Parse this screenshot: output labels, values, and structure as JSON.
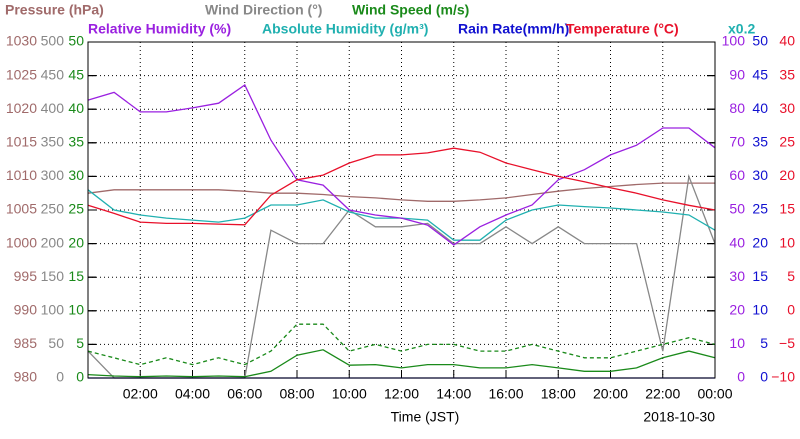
{
  "chart_data": {
    "type": "line",
    "x_label": "Time (JST)",
    "date": "2018-10-30",
    "annotation": "x0.2",
    "grid": true,
    "xlim": [
      0,
      24
    ],
    "xticks": [
      {
        "value": 2,
        "label": "02:00"
      },
      {
        "value": 4,
        "label": "04:00"
      },
      {
        "value": 6,
        "label": "06:00"
      },
      {
        "value": 8,
        "label": "08:00"
      },
      {
        "value": 10,
        "label": "10:00"
      },
      {
        "value": 12,
        "label": "12:00"
      },
      {
        "value": 14,
        "label": "14:00"
      },
      {
        "value": 16,
        "label": "16:00"
      },
      {
        "value": 18,
        "label": "18:00"
      },
      {
        "value": 20,
        "label": "20:00"
      },
      {
        "value": 22,
        "label": "22:00"
      },
      {
        "value": 24,
        "label": "00:00"
      }
    ],
    "x": [
      0,
      1,
      2,
      3,
      4,
      5,
      6,
      7,
      8,
      9,
      10,
      11,
      12,
      13,
      14,
      15,
      16,
      17,
      18,
      19,
      20,
      21,
      22,
      23,
      24
    ],
    "axes": [
      {
        "title": "Pressure (hPa)",
        "color": "#a06a6a",
        "ylim": [
          980,
          1030
        ],
        "yticks": [
          980,
          985,
          990,
          995,
          1000,
          1005,
          1010,
          1015,
          1020,
          1025,
          1030
        ]
      },
      {
        "title": "Wind Direction (°)",
        "color": "#888888",
        "ylim": [
          0,
          500
        ],
        "yticks": [
          0,
          50,
          100,
          150,
          200,
          250,
          300,
          350,
          400,
          450,
          500
        ]
      },
      {
        "title": "Wind Speed (m/s)",
        "color": "#1a8a1a",
        "ylim": [
          0,
          50
        ],
        "yticks": [
          0,
          5,
          10,
          15,
          20,
          25,
          30,
          35,
          40,
          45,
          50
        ]
      },
      {
        "title": "Relative Humidity (%)",
        "color": "#9a20e0",
        "ylim": [
          0,
          100
        ],
        "yticks": [
          0,
          10,
          20,
          30,
          40,
          50,
          60,
          70,
          80,
          90,
          100
        ]
      },
      {
        "title": "Absolute Humidity (g/m³)",
        "color": "#20b0b0",
        "ylim": [
          0,
          100
        ]
      },
      {
        "title": "Rain Rate(mm/h)",
        "color": "#1010d0",
        "ylim": [
          0,
          50
        ],
        "yticks": [
          0,
          5,
          10,
          15,
          20,
          25,
          30,
          35,
          40,
          45,
          50
        ]
      },
      {
        "title": "Temperature (°C)",
        "color": "#e8102a",
        "ylim": [
          -10,
          40
        ],
        "yticks": [
          {
            "value": -10,
            "label": "−10"
          },
          {
            "value": -5,
            "label": "−5"
          },
          0,
          5,
          10,
          15,
          20,
          25,
          30,
          35,
          40
        ]
      }
    ],
    "series": [
      {
        "axis": 0,
        "color": "#a06a6a",
        "values": [
          1007.5,
          1008,
          1008,
          1008,
          1008,
          1008,
          1007.8,
          1007.5,
          1007.5,
          1007.3,
          1007,
          1006.8,
          1006.5,
          1006.3,
          1006.3,
          1006.5,
          1006.8,
          1007.3,
          1007.8,
          1008.2,
          1008.5,
          1008.8,
          1009,
          1009,
          1009
        ]
      },
      {
        "axis": 1,
        "color": "#888888",
        "values": [
          40,
          0,
          0,
          0,
          0,
          0,
          0,
          220,
          200,
          200,
          250,
          225,
          225,
          230,
          200,
          200,
          225,
          200,
          225,
          200,
          200,
          200,
          40,
          300,
          200
        ]
      },
      {
        "axis": 2,
        "color": "#1a8a1a",
        "dashed": true,
        "values": [
          4,
          3,
          2,
          3,
          2,
          3,
          2,
          4,
          8,
          8,
          4,
          5,
          4,
          5,
          5,
          4,
          4,
          5,
          4,
          3,
          3,
          4,
          5,
          6,
          5
        ]
      },
      {
        "axis": 2,
        "color": "#1a8a1a",
        "values": [
          0.5,
          0.3,
          0.2,
          0.3,
          0.2,
          0.3,
          0.2,
          1,
          3.4,
          4.2,
          1.9,
          2,
          1.5,
          2,
          2,
          1.5,
          1.5,
          2,
          1.5,
          1,
          1,
          1.5,
          3,
          4,
          3
        ]
      },
      {
        "axis": 5,
        "color": "#1010d0",
        "values": [
          0,
          0,
          0,
          0,
          0,
          0,
          0,
          0,
          0,
          0,
          0,
          0,
          0,
          0,
          0,
          0,
          0,
          0,
          0,
          0,
          0,
          0,
          0,
          0,
          0
        ]
      },
      {
        "axis": 4,
        "color": "#20b0b0",
        "values": [
          56,
          50,
          48.5,
          47.6,
          47,
          46.4,
          47.6,
          51.5,
          51.5,
          53,
          49.4,
          47.6,
          47.6,
          47,
          41,
          41,
          47,
          50,
          51.5,
          51,
          50.6,
          50,
          49.4,
          48.5,
          44
        ]
      },
      {
        "axis": 3,
        "color": "#9a20e0",
        "values": [
          82.7,
          85,
          79.2,
          79.2,
          80.4,
          81.8,
          87.2,
          70.8,
          59,
          57.4,
          50,
          48.5,
          47.6,
          45.5,
          39.6,
          45,
          48.5,
          51.5,
          59,
          62,
          66.4,
          69.3,
          74.4,
          74.4,
          68.5
        ]
      },
      {
        "axis": 6,
        "color": "#e8102a",
        "values": [
          15.7,
          14.5,
          13.2,
          13,
          13,
          12.9,
          12.8,
          17.2,
          19.5,
          20.2,
          22,
          23.2,
          23.2,
          23.5,
          24.2,
          23.6,
          22,
          21,
          20,
          19.2,
          18.3,
          17.5,
          16.5,
          15.7,
          15
        ]
      }
    ]
  }
}
